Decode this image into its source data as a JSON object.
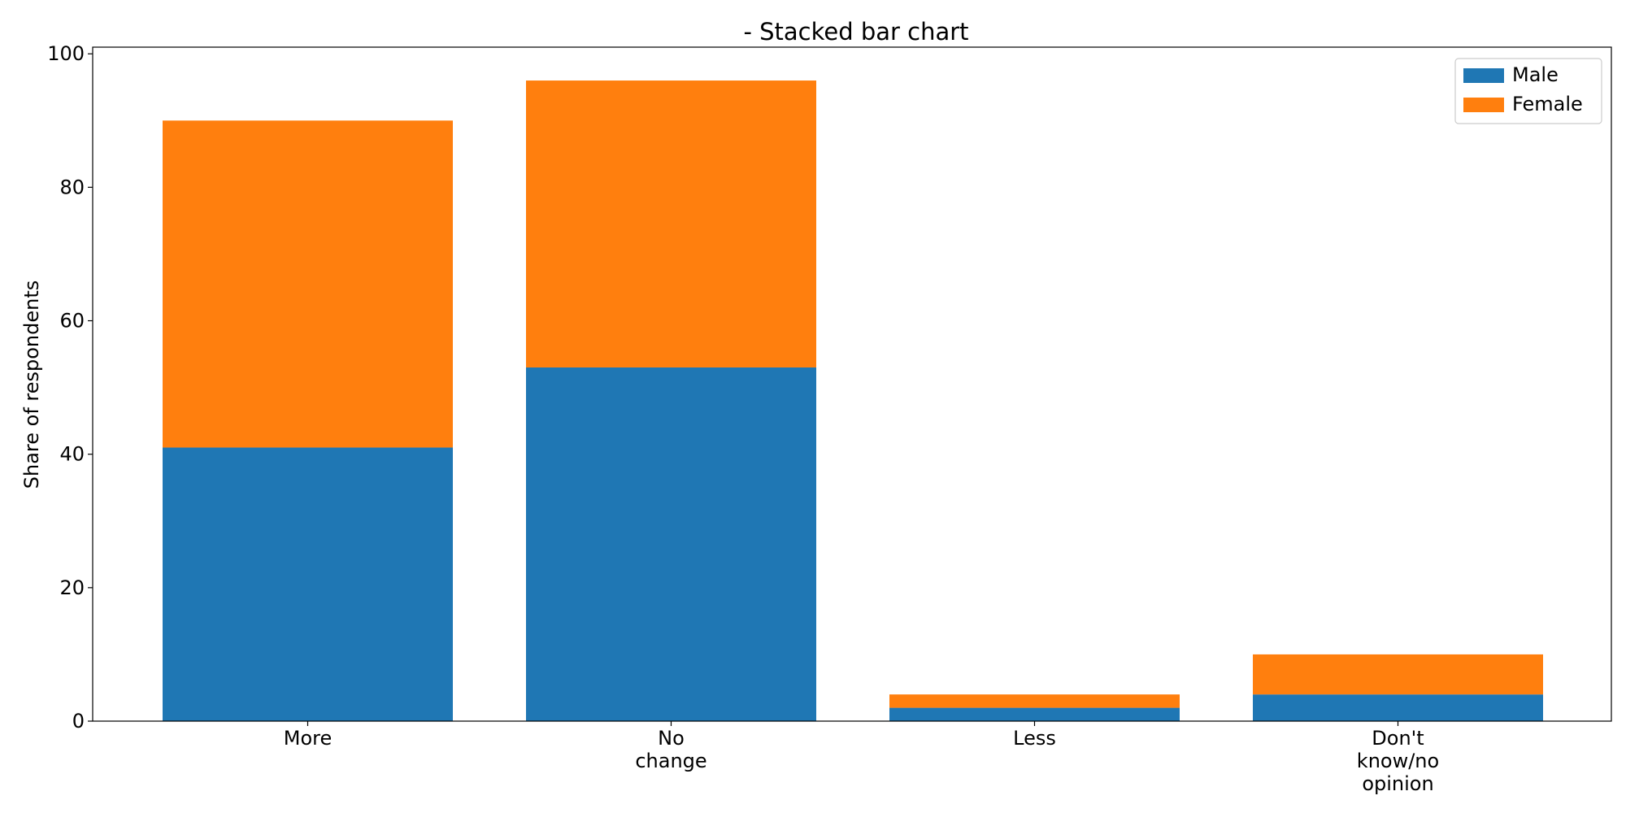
{
  "chart_data": {
    "type": "bar",
    "stacked": true,
    "title": "- Stacked bar chart",
    "xlabel": "",
    "ylabel": "Share of respondents",
    "categories": [
      [
        "More"
      ],
      [
        "No",
        "change"
      ],
      [
        "Less"
      ],
      [
        "Don't",
        "know/no",
        "opinion"
      ]
    ],
    "series": [
      {
        "name": "Male",
        "color": "#1f77b4",
        "values": [
          41,
          53,
          2,
          4
        ]
      },
      {
        "name": "Female",
        "color": "#ff7f0e",
        "values": [
          49,
          43,
          2,
          6
        ]
      }
    ],
    "ylim": [
      0,
      101
    ],
    "yticks": [
      0,
      20,
      40,
      60,
      80,
      100
    ],
    "grid": false,
    "legend_position": "top-right"
  }
}
